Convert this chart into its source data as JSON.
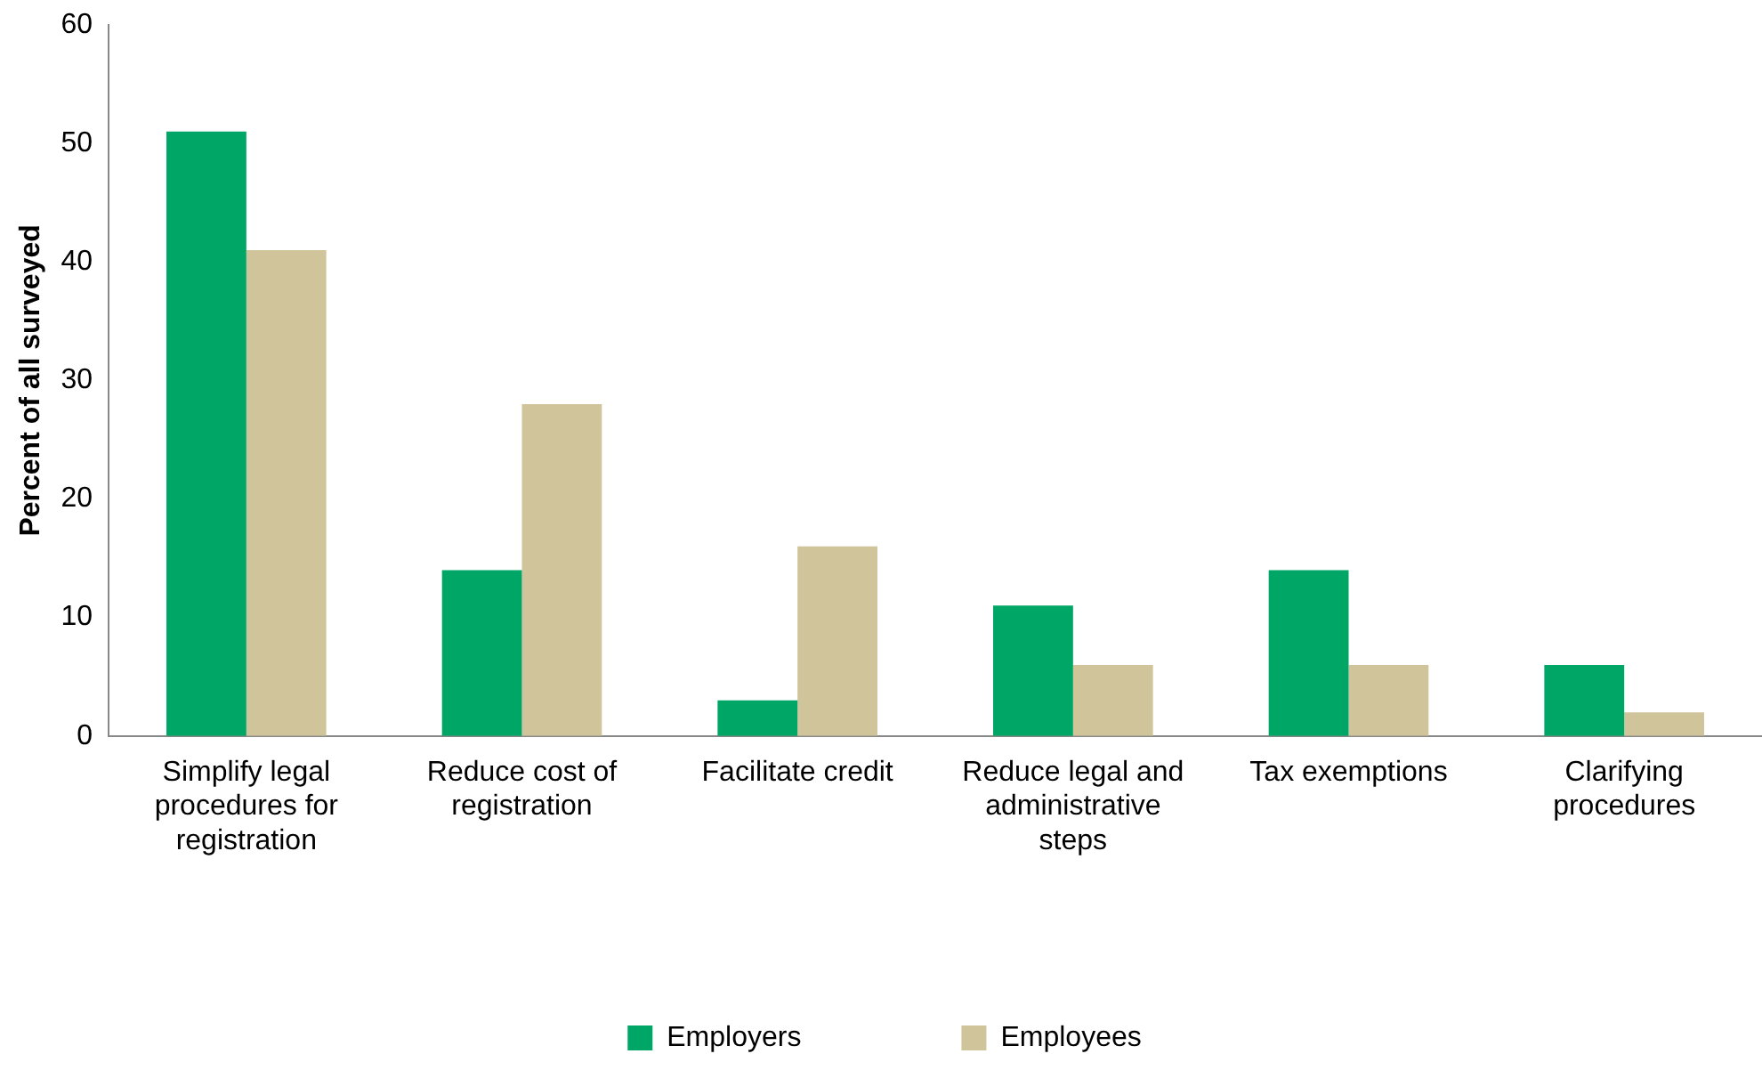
{
  "chart_data": {
    "type": "bar",
    "ylabel": "Percent of all surveyed",
    "categories": [
      "Simplify legal procedures for registration",
      "Reduce cost of registration",
      "Facilitate credit",
      "Reduce legal and administrative steps",
      "Tax exemptions",
      "Clarifying procedures"
    ],
    "series": [
      {
        "name": "Employers",
        "color": "#00a665",
        "values": [
          51,
          14,
          3,
          11,
          14,
          6
        ]
      },
      {
        "name": "Employees",
        "color": "#cfc49a",
        "values": [
          41,
          28,
          16,
          6,
          6,
          2
        ]
      }
    ],
    "ylim": [
      0,
      60
    ],
    "yticks": [
      0,
      10,
      20,
      30,
      40,
      50,
      60
    ],
    "grid": false,
    "legend": "bottom"
  }
}
